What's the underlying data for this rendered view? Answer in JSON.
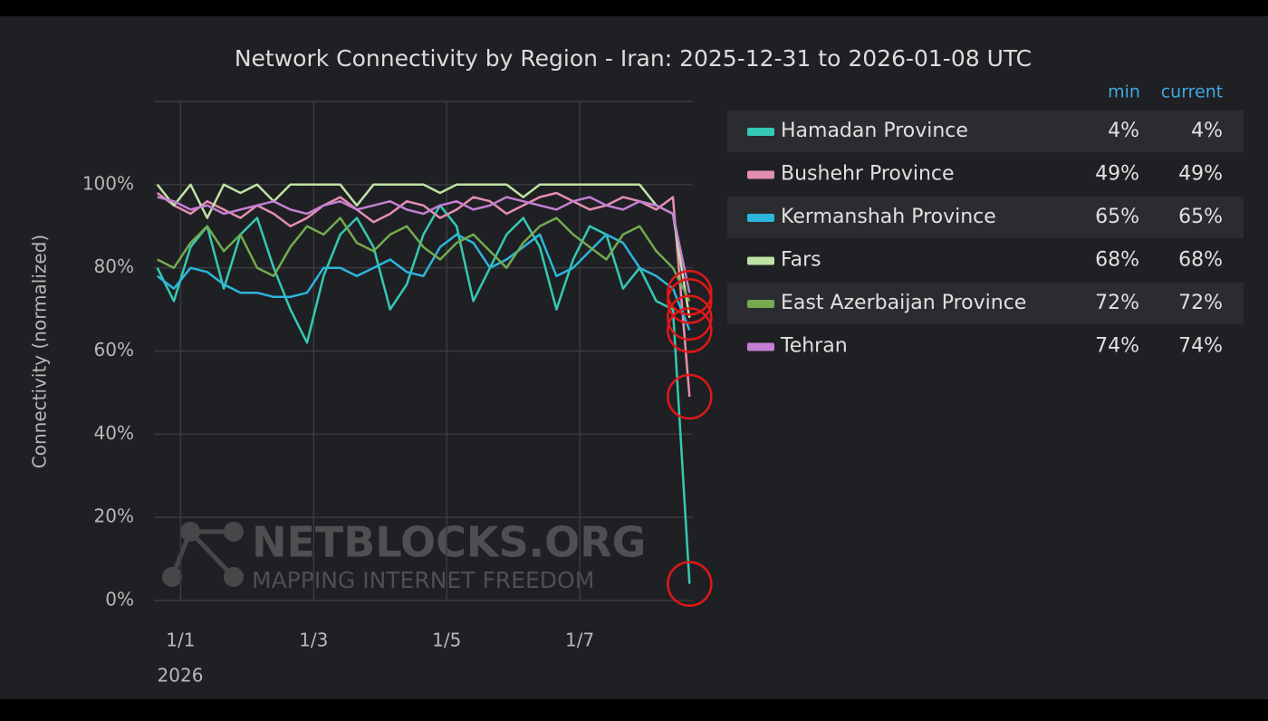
{
  "chart_data": {
    "type": "line",
    "title": "Network Connectivity by Region - Iran: 2025-12-31 to 2026-01-08 UTC",
    "y_label": "Connectivity (normalized)",
    "x_sublabel": "2026",
    "watermark": [
      "NETBLOCKS.ORG",
      "MAPPING INTERNET FREEDOM"
    ],
    "legend_columns": [
      "min",
      "current"
    ],
    "grid": true,
    "highlight_last": true,
    "highlight_color": "#e01818",
    "xlim": [
      0.6,
      8.7
    ],
    "xticks": [
      {
        "value": 1,
        "label": "1/1"
      },
      {
        "value": 3,
        "label": "1/3"
      },
      {
        "value": 5,
        "label": "1/5"
      },
      {
        "value": 7,
        "label": "1/7"
      }
    ],
    "ylim": [
      0,
      120
    ],
    "yticks": [
      {
        "value": 0,
        "label": "0%"
      },
      {
        "value": 20,
        "label": "20%"
      },
      {
        "value": 40,
        "label": "40%"
      },
      {
        "value": 60,
        "label": "60%"
      },
      {
        "value": 80,
        "label": "80%"
      },
      {
        "value": 100,
        "label": "100%"
      }
    ],
    "x": [
      0.65,
      0.9,
      1.15,
      1.4,
      1.65,
      1.9,
      2.15,
      2.4,
      2.65,
      2.9,
      3.15,
      3.4,
      3.65,
      3.9,
      4.15,
      4.4,
      4.65,
      4.9,
      5.15,
      5.4,
      5.65,
      5.9,
      6.15,
      6.4,
      6.65,
      6.9,
      7.15,
      7.4,
      7.65,
      7.9,
      8.15,
      8.4,
      8.65
    ],
    "series": [
      {
        "name": "Hamadan Province",
        "color": "#35c9b3",
        "legend_values": [
          {
            "value": 4,
            "label": "4%"
          },
          {
            "value": 4,
            "label": "4%"
          }
        ],
        "values": [
          80,
          72,
          85,
          90,
          75,
          88,
          92,
          80,
          70,
          62,
          78,
          88,
          92,
          85,
          70,
          76,
          88,
          95,
          90,
          72,
          80,
          88,
          92,
          85,
          70,
          82,
          90,
          88,
          75,
          80,
          72,
          70,
          4
        ]
      },
      {
        "name": "Bushehr Province",
        "color": "#e58fb0",
        "legend_values": [
          {
            "value": 49,
            "label": "49%"
          },
          {
            "value": 49,
            "label": "49%"
          }
        ],
        "values": [
          98,
          95,
          93,
          96,
          94,
          92,
          95,
          93,
          90,
          92,
          95,
          97,
          94,
          91,
          93,
          96,
          95,
          92,
          94,
          97,
          96,
          93,
          95,
          97,
          98,
          96,
          94,
          95,
          97,
          96,
          94,
          97,
          49
        ]
      },
      {
        "name": "Kermanshah Province",
        "color": "#2cb6dc",
        "legend_values": [
          {
            "value": 65,
            "label": "65%"
          },
          {
            "value": 65,
            "label": "65%"
          }
        ],
        "values": [
          78,
          75,
          80,
          79,
          76,
          74,
          74,
          73,
          73,
          74,
          80,
          80,
          78,
          80,
          82,
          79,
          78,
          85,
          88,
          86,
          80,
          82,
          85,
          88,
          78,
          80,
          84,
          88,
          86,
          80,
          78,
          75,
          65
        ]
      },
      {
        "name": "Fars",
        "color": "#bfe3a6",
        "legend_values": [
          {
            "value": 68,
            "label": "68%"
          },
          {
            "value": 68,
            "label": "68%"
          }
        ],
        "values": [
          100,
          95,
          100,
          92,
          100,
          98,
          100,
          96,
          100,
          100,
          100,
          100,
          95,
          100,
          100,
          100,
          100,
          98,
          100,
          100,
          100,
          100,
          97,
          100,
          100,
          100,
          100,
          100,
          100,
          100,
          95,
          93,
          68
        ]
      },
      {
        "name": "East Azerbaijan Province",
        "color": "#74aa50",
        "legend_values": [
          {
            "value": 72,
            "label": "72%"
          },
          {
            "value": 72,
            "label": "72%"
          }
        ],
        "values": [
          82,
          80,
          86,
          90,
          84,
          88,
          80,
          78,
          85,
          90,
          88,
          92,
          86,
          84,
          88,
          90,
          85,
          82,
          86,
          88,
          84,
          80,
          86,
          90,
          92,
          88,
          85,
          82,
          88,
          90,
          84,
          80,
          72
        ]
      },
      {
        "name": "Tehran",
        "color": "#c47fd4",
        "legend_values": [
          {
            "value": 74,
            "label": "74%"
          },
          {
            "value": 74,
            "label": "74%"
          }
        ],
        "values": [
          97,
          96,
          94,
          95,
          93,
          94,
          95,
          96,
          94,
          93,
          95,
          96,
          94,
          95,
          96,
          94,
          93,
          95,
          96,
          94,
          95,
          97,
          96,
          95,
          94,
          96,
          97,
          95,
          94,
          96,
          95,
          93,
          74
        ]
      }
    ]
  }
}
